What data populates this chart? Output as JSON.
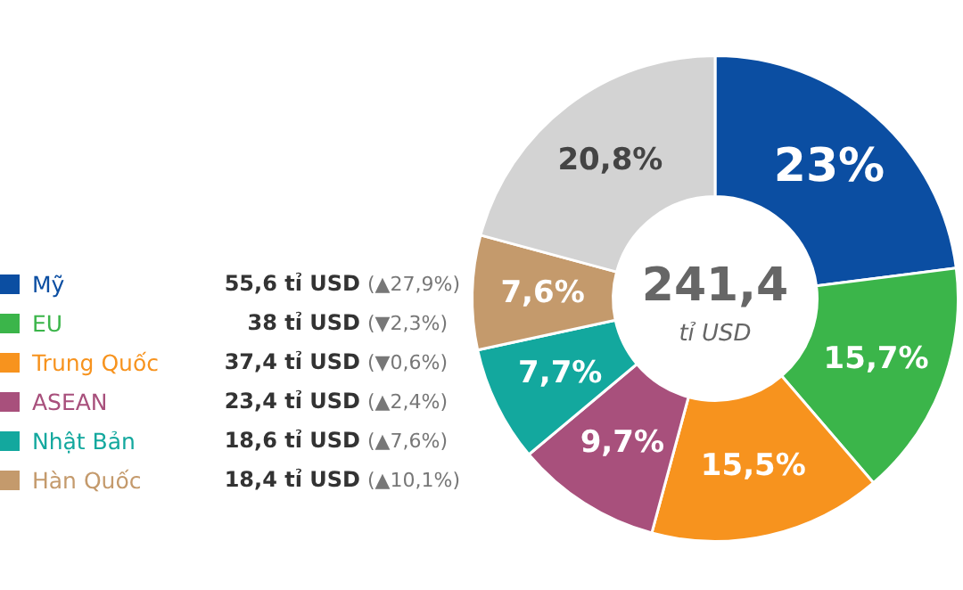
{
  "chart_data": {
    "type": "donut",
    "categories": [
      "Mỹ",
      "EU",
      "Trung Quốc",
      "ASEAN",
      "Nhật Bản",
      "Hàn Quốc",
      null
    ],
    "values": [
      23,
      15.7,
      15.5,
      9.7,
      7.7,
      7.6,
      20.8
    ],
    "colors": [
      "#0b4ea2",
      "#3bb54a",
      "#f7931e",
      "#a8507c",
      "#13a89e",
      "#c49a6c",
      "#d3d3d3"
    ],
    "value_labels": [
      "23%",
      "15,7%",
      "15,5%",
      "9,7%",
      "7,7%",
      "7,6%",
      "20,8%"
    ],
    "annotations": [
      "55,6 tỉ USD (▲27,9%)",
      "38 tỉ USD (▼2,3%)",
      "37,4 tỉ USD (▼0,6%)",
      "23,4 tỉ USD (▲2,4%)",
      "18,6 tỉ USD (▲7,6%)",
      "18,4 tỉ USD (▲10,1%)",
      "241,4",
      "tỉ USD"
    ],
    "legend": "left"
  }
}
